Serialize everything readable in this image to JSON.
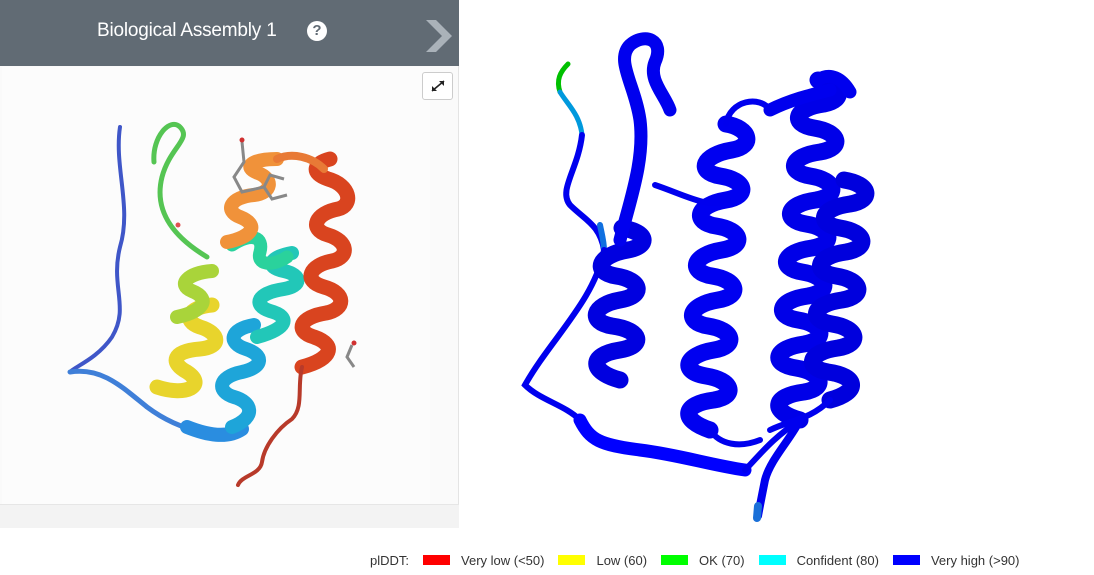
{
  "panel": {
    "title": "Biological Assembly 1",
    "help_glyph": "?",
    "next_icon": "chevron-right-icon",
    "expand_icon": "expand-icon"
  },
  "colors": {
    "header_bg": "#616b74",
    "very_low": "#ff0000",
    "low": "#ffff00",
    "ok": "#00ff00",
    "confident": "#00ffff",
    "very_high": "#0000ff"
  },
  "legend": {
    "title": "plDDT:",
    "items": [
      {
        "label": "Very low (<50)",
        "color": "#ff0000"
      },
      {
        "label": "Low (60)",
        "color": "#ffff00"
      },
      {
        "label": "OK (70)",
        "color": "#00ff00"
      },
      {
        "label": "Confident (80)",
        "color": "#00ffff"
      },
      {
        "label": "Very high (>90)",
        "color": "#0000ff"
      }
    ]
  }
}
